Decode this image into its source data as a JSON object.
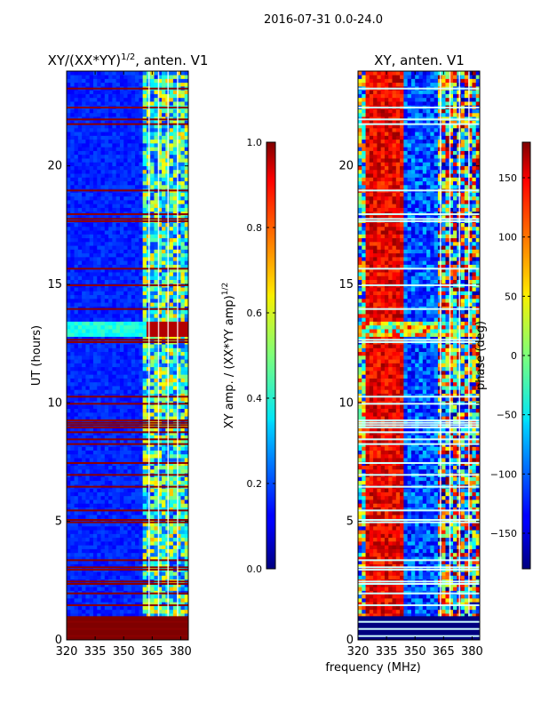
{
  "figure": {
    "suptitle": "2016-07-31 0.0-24.0",
    "xlabel": "frequency (MHz)"
  },
  "chart_data": [
    {
      "type": "heatmap",
      "title": "XY/(XX*YY)",
      "title_exp": "1/2",
      "title_suffix": ", anten. V1",
      "ylabel": "UT (hours)",
      "xlim": [
        320,
        384
      ],
      "ylim": [
        0,
        24
      ],
      "x_ticks": [
        320,
        335,
        350,
        365,
        380
      ],
      "y_ticks": [
        0,
        5,
        10,
        15,
        20
      ],
      "colorbar": {
        "label": "XY amp. / (XX*YY amp)",
        "label_exp": "1/2",
        "range": [
          0.0,
          1.0
        ],
        "ticks": [
          "0.0",
          "0.2",
          "0.4",
          "0.6",
          "0.8",
          "1.0"
        ],
        "tick_values": [
          0.0,
          0.2,
          0.4,
          0.6,
          0.8,
          1.0
        ]
      },
      "flagged_ut_hours": [
        0.2,
        0.5,
        0.8,
        1.5,
        2.0,
        2.4,
        2.5,
        3.0,
        3.1,
        3.4,
        5.0,
        5.1,
        5.5,
        6.5,
        7.0,
        7.5,
        8.3,
        8.5,
        8.8,
        9.0,
        9.1,
        9.2,
        9.3,
        10.0,
        10.3,
        12.6,
        12.7,
        14.0,
        15.0,
        15.7,
        17.7,
        17.8,
        18.0,
        19.0,
        21.8,
        22.0,
        22.5,
        23.3
      ]
    },
    {
      "type": "heatmap",
      "title": "XY, anten. V1",
      "ylabel": "",
      "xlim": [
        320,
        384
      ],
      "ylim": [
        0,
        24
      ],
      "x_ticks": [
        320,
        335,
        350,
        365,
        380
      ],
      "y_ticks": [
        0,
        5,
        10,
        15,
        20
      ],
      "colorbar": {
        "label": "phase (deg)",
        "range": [
          -180,
          180
        ],
        "ticks": [
          "−150",
          "−100",
          "−50",
          "0",
          "50",
          "100",
          "150"
        ],
        "tick_values": [
          -150,
          -100,
          -50,
          0,
          50,
          100,
          150
        ]
      },
      "flagged_ut_hours": [
        0.2,
        0.5,
        0.8,
        1.5,
        2.0,
        2.4,
        2.5,
        3.0,
        3.1,
        3.4,
        5.0,
        5.1,
        5.5,
        6.5,
        7.0,
        7.5,
        8.3,
        8.5,
        8.8,
        9.0,
        9.1,
        9.2,
        9.3,
        10.0,
        10.3,
        12.6,
        12.7,
        14.0,
        15.0,
        15.7,
        17.7,
        17.8,
        18.0,
        19.0,
        21.8,
        22.0,
        22.5,
        23.3
      ]
    }
  ]
}
